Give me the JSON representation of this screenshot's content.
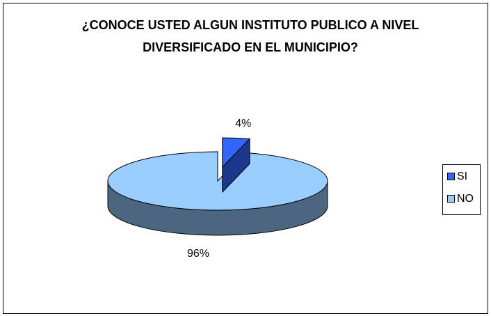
{
  "chart_data": {
    "type": "pie3d",
    "title": "¿CONOCE USTED ALGUN INSTITUTO PUBLICO A NIVEL DIVERSIFICADO EN EL MUNICIPIO?",
    "categories": [
      "SI",
      "NO"
    ],
    "values": [
      4,
      96
    ],
    "value_labels": [
      "4%",
      "96%"
    ],
    "series": [
      {
        "name": "SI",
        "color": "#3366ff"
      },
      {
        "name": "NO",
        "color": "#99ccff"
      }
    ],
    "legend": "right"
  }
}
